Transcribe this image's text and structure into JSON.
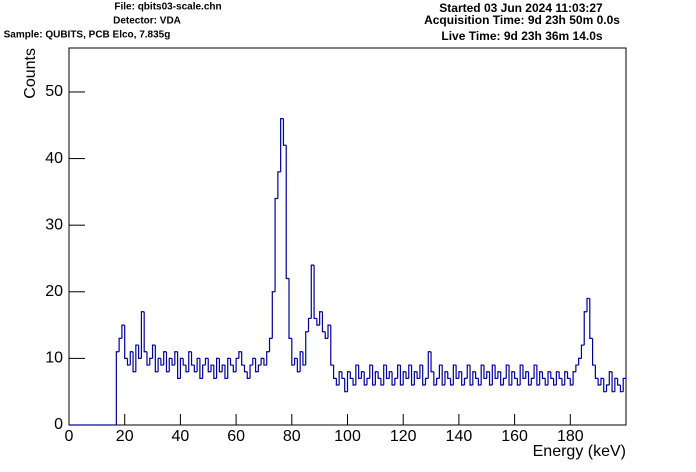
{
  "chart_data": {
    "type": "histogram",
    "header": {
      "file": "File: qbits03-scale.chn",
      "detector": "Detector: VDA",
      "sample": "Sample: QUBITS, PCB Elco, 7.835g",
      "started": "Started 03 Jun 2024 11:03:27",
      "acquisition": "Acquisition Time: 9d 23h 50m 0.0s",
      "live": "Live Time: 9d 23h 36m 14.0s"
    },
    "x_label": "Energy (keV)",
    "y_label": "Counts",
    "color": "#000099",
    "xlim": [
      0,
      200
    ],
    "ylim": [
      0,
      56.6
    ],
    "xticks": [
      0,
      20,
      40,
      60,
      80,
      100,
      120,
      140,
      160,
      180
    ],
    "yticks": [
      0,
      10,
      20,
      30,
      40,
      50
    ],
    "bins": [
      0,
      1,
      2,
      3,
      4,
      5,
      6,
      7,
      8,
      9,
      10,
      11,
      12,
      13,
      14,
      15,
      16,
      17,
      18,
      19,
      20,
      21,
      22,
      23,
      24,
      25,
      26,
      27,
      28,
      29,
      30,
      31,
      32,
      33,
      34,
      35,
      36,
      37,
      38,
      39,
      40,
      41,
      42,
      43,
      44,
      45,
      46,
      47,
      48,
      49,
      50,
      51,
      52,
      53,
      54,
      55,
      56,
      57,
      58,
      59,
      60,
      61,
      62,
      63,
      64,
      65,
      66,
      67,
      68,
      69,
      70,
      71,
      72,
      73,
      74,
      75,
      76,
      77,
      78,
      79,
      80,
      81,
      82,
      83,
      84,
      85,
      86,
      87,
      88,
      89,
      90,
      91,
      92,
      93,
      94,
      95,
      96,
      97,
      98,
      99,
      100,
      101,
      102,
      103,
      104,
      105,
      106,
      107,
      108,
      109,
      110,
      111,
      112,
      113,
      114,
      115,
      116,
      117,
      118,
      119,
      120,
      121,
      122,
      123,
      124,
      125,
      126,
      127,
      128,
      129,
      130,
      131,
      132,
      133,
      134,
      135,
      136,
      137,
      138,
      139,
      140,
      141,
      142,
      143,
      144,
      145,
      146,
      147,
      148,
      149,
      150,
      151,
      152,
      153,
      154,
      155,
      156,
      157,
      158,
      159,
      160,
      161,
      162,
      163,
      164,
      165,
      166,
      167,
      168,
      169,
      170,
      171,
      172,
      173,
      174,
      175,
      176,
      177,
      178,
      179,
      180,
      181,
      182,
      183,
      184,
      185,
      186,
      187,
      188,
      189,
      190,
      191,
      192,
      193,
      194,
      195,
      196,
      197,
      198,
      199,
      200
    ],
    "values": [
      0,
      0,
      0,
      0,
      0,
      0,
      0,
      0,
      0,
      0,
      0,
      0,
      0,
      0,
      0,
      0,
      0,
      11,
      13,
      15,
      10,
      9,
      11,
      8,
      12,
      10,
      17,
      11,
      9,
      10,
      12,
      8,
      10,
      9,
      11,
      8,
      10,
      9,
      11,
      7,
      10,
      9,
      8,
      11,
      9,
      8,
      10,
      7,
      9,
      10,
      8,
      9,
      7,
      10,
      8,
      9,
      7,
      10,
      9,
      8,
      10,
      11,
      9,
      8,
      7,
      9,
      10,
      8,
      9,
      10,
      9,
      11,
      13,
      20,
      34,
      38,
      46,
      42,
      22,
      13,
      9,
      10,
      8,
      11,
      9,
      14,
      16,
      24,
      16,
      15,
      17,
      14,
      13,
      15,
      9,
      7,
      6,
      8,
      7,
      5,
      8,
      7,
      6,
      9,
      7,
      8,
      6,
      7,
      9,
      6,
      8,
      7,
      6,
      9,
      7,
      8,
      6,
      7,
      9,
      6,
      8,
      7,
      9,
      6,
      8,
      7,
      9,
      6,
      7,
      11,
      8,
      6,
      7,
      9,
      6,
      8,
      7,
      6,
      9,
      7,
      8,
      6,
      7,
      9,
      6,
      8,
      7,
      6,
      9,
      7,
      8,
      6,
      9,
      7,
      8,
      6,
      7,
      9,
      6,
      8,
      7,
      6,
      9,
      7,
      8,
      6,
      7,
      9,
      6,
      8,
      7,
      6,
      8,
      7,
      6,
      8,
      7,
      6,
      8,
      7,
      6,
      8,
      9,
      10,
      12,
      17,
      19,
      13,
      9,
      7,
      6,
      7,
      5,
      6,
      8,
      5,
      7,
      6,
      5,
      7
    ]
  }
}
